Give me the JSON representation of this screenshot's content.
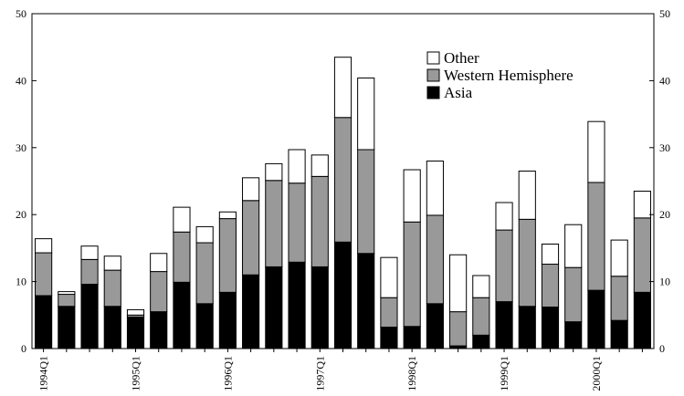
{
  "chart_data": {
    "type": "bar",
    "stacked": true,
    "title": "",
    "xlabel": "",
    "ylabel": "",
    "ylim": [
      0,
      50
    ],
    "yticks": [
      0,
      10,
      20,
      30,
      40,
      50
    ],
    "grid": false,
    "legend_position": "top-right",
    "categories": [
      "1994Q1",
      "1994Q2",
      "1994Q3",
      "1994Q4",
      "1995Q1",
      "1995Q2",
      "1995Q3",
      "1995Q4",
      "1996Q1",
      "1996Q2",
      "1996Q3",
      "1996Q4",
      "1997Q1",
      "1997Q2",
      "1997Q3",
      "1997Q4",
      "1998Q1",
      "1998Q2",
      "1998Q3",
      "1998Q4",
      "1999Q1",
      "1999Q2",
      "1999Q3",
      "1999Q4",
      "2000Q1",
      "2000Q2",
      "2000Q3"
    ],
    "xtick_labels": {
      "0": "1994Q1",
      "4": "1995Q1",
      "8": "1996Q1",
      "12": "1997Q1",
      "16": "1998Q1",
      "20": "1999Q1",
      "24": "2000Q1"
    },
    "series": [
      {
        "name": "Asia",
        "color": "#000000",
        "values": [
          7.9,
          6.3,
          9.6,
          6.3,
          4.7,
          5.5,
          9.9,
          6.7,
          8.4,
          11.0,
          12.2,
          12.9,
          12.2,
          15.9,
          14.2,
          3.2,
          3.3,
          6.7,
          0.4,
          2.0,
          7.0,
          6.3,
          6.2,
          4.0,
          8.7,
          4.2,
          8.4
        ]
      },
      {
        "name": "Western Hemisphere",
        "color": "#999999",
        "values": [
          6.4,
          1.8,
          3.7,
          5.4,
          0.3,
          6.0,
          7.5,
          9.1,
          11.0,
          11.1,
          12.9,
          11.8,
          13.5,
          18.6,
          15.5,
          4.4,
          15.6,
          13.2,
          5.1,
          5.6,
          10.7,
          13.0,
          6.4,
          8.1,
          16.1,
          6.6,
          11.1
        ]
      },
      {
        "name": "Other",
        "color": "#ffffff",
        "values": [
          2.1,
          0.4,
          2.0,
          2.1,
          0.8,
          2.7,
          3.7,
          2.4,
          1.0,
          3.4,
          2.5,
          5.0,
          3.2,
          9.0,
          10.7,
          6.0,
          7.8,
          8.1,
          8.5,
          3.3,
          4.1,
          7.2,
          3.0,
          6.4,
          9.1,
          5.4,
          4.0
        ]
      }
    ]
  }
}
